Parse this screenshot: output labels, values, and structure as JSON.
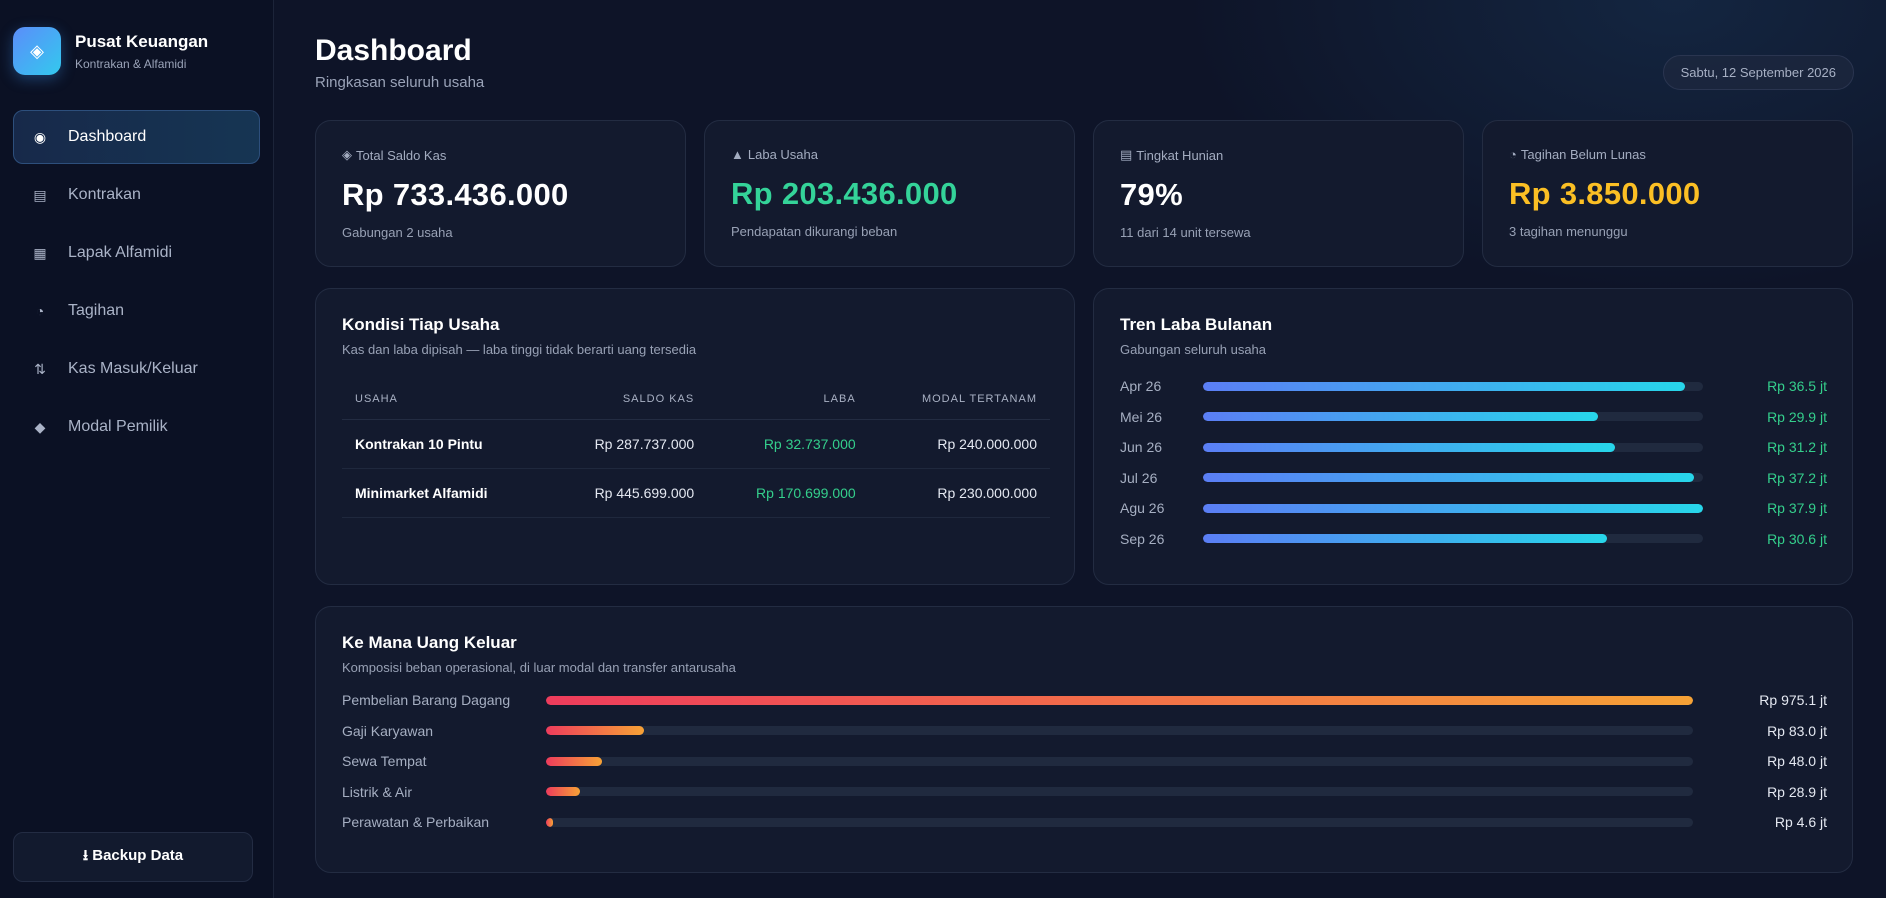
{
  "brand": {
    "title": "Pusat Keuangan",
    "subtitle": "Kontrakan & Alfamidi",
    "icon": "diamond-icon"
  },
  "nav": [
    {
      "label": "Dashboard",
      "icon": "◉",
      "active": true
    },
    {
      "label": "Kontrakan",
      "icon": "▤",
      "active": false
    },
    {
      "label": "Lapak Alfamidi",
      "icon": "▦",
      "active": false
    },
    {
      "label": "Tagihan",
      "icon": "◔",
      "active": false
    },
    {
      "label": "Kas Masuk/Keluar",
      "icon": "⇅",
      "active": false
    },
    {
      "label": "Modal Pemilik",
      "icon": "◆",
      "active": false
    }
  ],
  "backup": {
    "label": "⭳ Backup Data"
  },
  "header": {
    "title": "Dashboard",
    "subtitle": "Ringkasan seluruh usaha",
    "date": "Sabtu, 12 September 2026"
  },
  "kpis": [
    {
      "icon": "◈",
      "label": "Total Saldo Kas",
      "value": "Rp 733.436.000",
      "desc": "Gabungan 2 usaha",
      "color": "#ffffff"
    },
    {
      "icon": "▲",
      "label": "Laba Usaha",
      "value": "Rp 203.436.000",
      "desc": "Pendapatan dikurangi beban",
      "color": "#34d399"
    },
    {
      "icon": "▤",
      "label": "Tingkat Hunian",
      "value": "79%",
      "desc": "11 dari 14 unit tersewa",
      "color": "#ffffff"
    },
    {
      "icon": "◔",
      "label": "Tagihan Belum Lunas",
      "value": "Rp 3.850.000",
      "desc": "3 tagihan menunggu",
      "color": "#fbbf24"
    }
  ],
  "kondisi": {
    "title": "Kondisi Tiap Usaha",
    "subtitle": "Kas dan laba dipisah — laba tinggi tidak berarti uang tersedia",
    "headers": [
      "USAHA",
      "SALDO KAS",
      "LABA",
      "MODAL TERTANAM"
    ],
    "rows": [
      [
        "Kontrakan 10 Pintu",
        "Rp 287.737.000",
        "Rp 32.737.000",
        "Rp 240.000.000"
      ],
      [
        "Minimarket Alfamidi",
        "Rp 445.699.000",
        "Rp 170.699.000",
        "Rp 230.000.000"
      ]
    ]
  },
  "tren": {
    "title": "Tren Laba Bulanan",
    "subtitle": "Gabungan seluruh usaha",
    "rows": [
      {
        "label": "Apr 26",
        "value": "Rp 36.5 jt",
        "ratio": 0.963
      },
      {
        "label": "Mei 26",
        "value": "Rp 29.9 jt",
        "ratio": 0.789
      },
      {
        "label": "Jun 26",
        "value": "Rp 31.2 jt",
        "ratio": 0.823
      },
      {
        "label": "Jul 26",
        "value": "Rp 37.2 jt",
        "ratio": 0.981
      },
      {
        "label": "Agu 26",
        "value": "Rp 37.9 jt",
        "ratio": 1.0
      },
      {
        "label": "Sep 26",
        "value": "Rp 30.6 jt",
        "ratio": 0.807
      }
    ]
  },
  "pengeluaran": {
    "title": "Ke Mana Uang Keluar",
    "subtitle": "Komposisi beban operasional, di luar modal dan transfer antarusaha",
    "rows": [
      {
        "label": "Pembelian Barang Dagang",
        "value": "Rp 975.1 jt",
        "ratio": 1.0
      },
      {
        "label": "Gaji Karyawan",
        "value": "Rp 83.0 jt",
        "ratio": 0.0851
      },
      {
        "label": "Sewa Tempat",
        "value": "Rp 48.0 jt",
        "ratio": 0.0492
      },
      {
        "label": "Listrik & Air",
        "value": "Rp 28.9 jt",
        "ratio": 0.0296
      },
      {
        "label": "Perawatan & Perbaikan",
        "value": "Rp 4.6 jt",
        "ratio": 0.0047
      }
    ]
  }
}
